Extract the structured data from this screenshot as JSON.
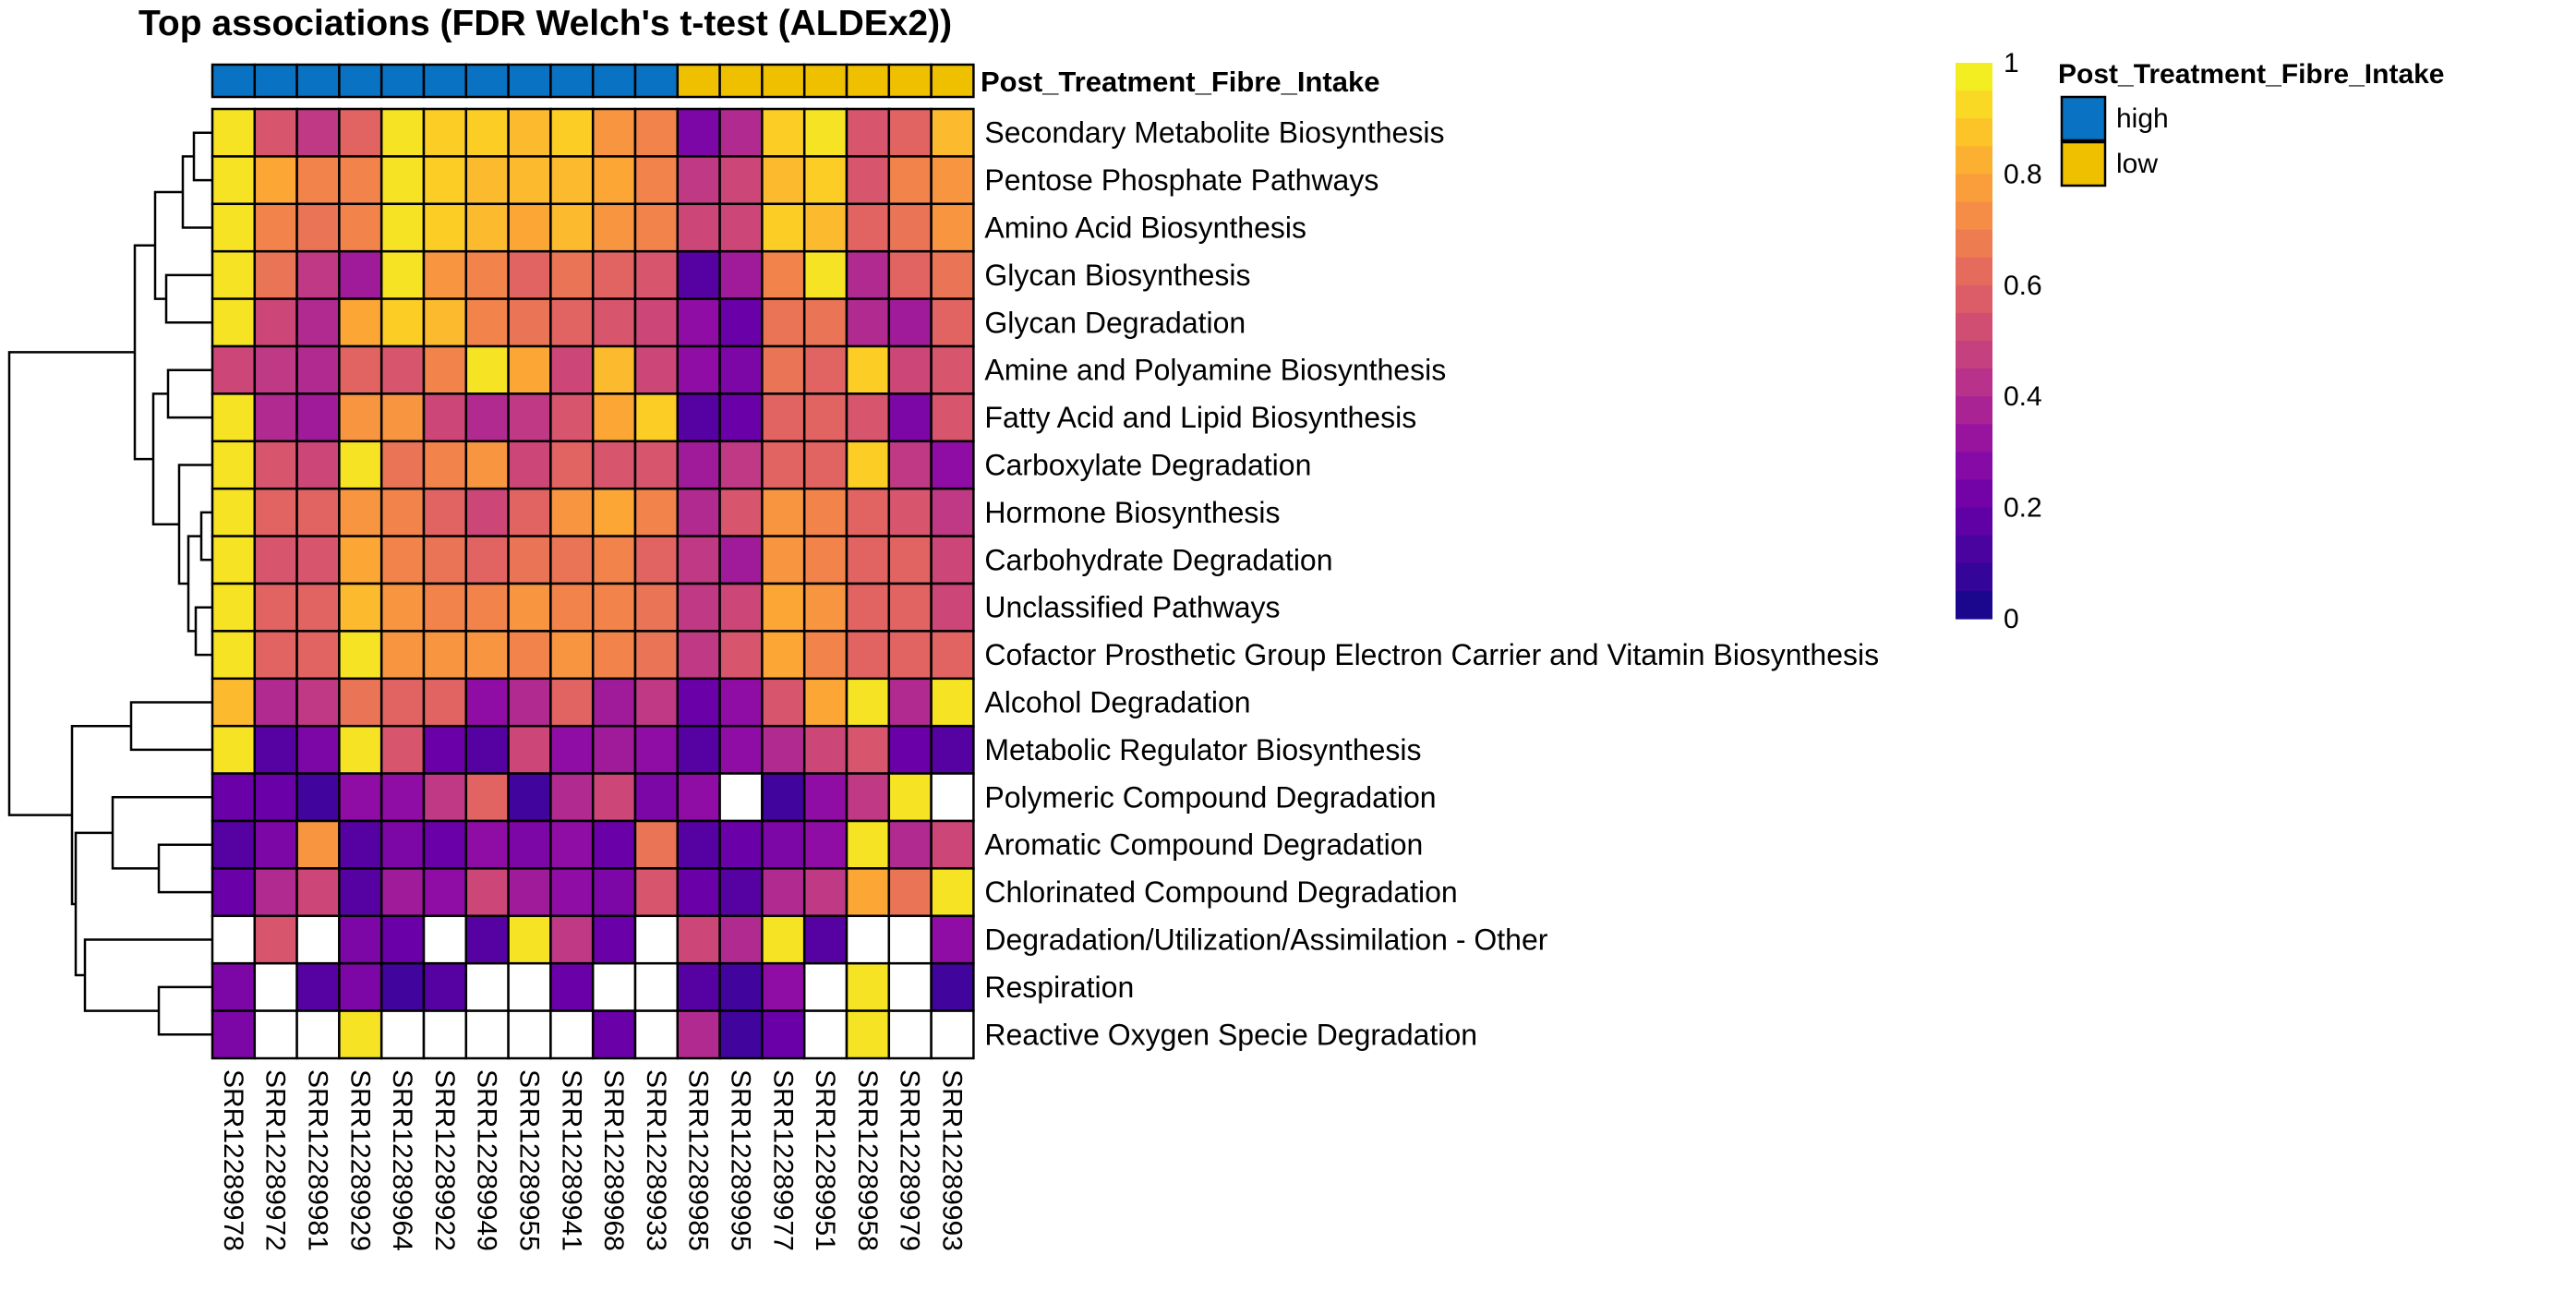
{
  "chart_data": {
    "type": "heatmap",
    "title": "Top associations (FDR Welch's t-test (ALDEx2))",
    "columns": [
      "SRR12289978",
      "SRR12289972",
      "SRR12289981",
      "SRR12289929",
      "SRR12289964",
      "SRR12289922",
      "SRR12289949",
      "SRR12289955",
      "SRR12289941",
      "SRR12289968",
      "SRR12289933",
      "SRR12289985",
      "SRR12289995",
      "SRR12289977",
      "SRR12289951",
      "SRR12289958",
      "SRR12289979",
      "SRR12289993"
    ],
    "rows": [
      "Secondary Metabolite Biosynthesis",
      "Pentose Phosphate Pathways",
      "Amino Acid Biosynthesis",
      "Glycan Biosynthesis",
      "Glycan Degradation",
      "Amine and Polyamine Biosynthesis",
      "Fatty Acid and Lipid Biosynthesis",
      "Carboxylate Degradation",
      "Hormone Biosynthesis",
      "Carbohydrate Degradation",
      "Unclassified Pathways",
      "Cofactor Prosthetic Group Electron Carrier and Vitamin Biosynthesis",
      "Alcohol Degradation",
      "Metabolic Regulator Biosynthesis",
      "Polymeric Compound Degradation",
      "Aromatic Compound Degradation",
      "Chlorinated Compound Degradation",
      "Degradation/Utilization/Assimilation - Other",
      "Respiration",
      "Reactive Oxygen Specie Degradation"
    ],
    "values": [
      [
        0.95,
        0.55,
        0.45,
        0.6,
        0.95,
        0.9,
        0.9,
        0.85,
        0.9,
        0.75,
        0.7,
        0.25,
        0.4,
        0.9,
        0.95,
        0.55,
        0.6,
        0.85
      ],
      [
        0.95,
        0.8,
        0.7,
        0.7,
        0.95,
        0.9,
        0.85,
        0.85,
        0.85,
        0.8,
        0.7,
        0.45,
        0.5,
        0.85,
        0.9,
        0.55,
        0.7,
        0.75
      ],
      [
        0.95,
        0.7,
        0.65,
        0.7,
        0.95,
        0.9,
        0.85,
        0.8,
        0.85,
        0.75,
        0.7,
        0.5,
        0.5,
        0.9,
        0.85,
        0.6,
        0.65,
        0.75
      ],
      [
        0.95,
        0.65,
        0.45,
        0.35,
        0.95,
        0.75,
        0.7,
        0.6,
        0.65,
        0.6,
        0.55,
        0.15,
        0.35,
        0.7,
        0.95,
        0.4,
        0.6,
        0.65
      ],
      [
        0.95,
        0.5,
        0.4,
        0.8,
        0.9,
        0.85,
        0.7,
        0.65,
        0.6,
        0.55,
        0.5,
        0.3,
        0.2,
        0.65,
        0.65,
        0.4,
        0.35,
        0.6
      ],
      [
        0.5,
        0.45,
        0.4,
        0.6,
        0.55,
        0.7,
        0.95,
        0.8,
        0.5,
        0.85,
        0.5,
        0.3,
        0.25,
        0.65,
        0.6,
        0.9,
        0.5,
        0.55
      ],
      [
        0.95,
        0.4,
        0.35,
        0.75,
        0.75,
        0.5,
        0.4,
        0.45,
        0.55,
        0.8,
        0.9,
        0.15,
        0.2,
        0.6,
        0.6,
        0.55,
        0.25,
        0.55
      ],
      [
        0.95,
        0.55,
        0.5,
        0.95,
        0.65,
        0.7,
        0.75,
        0.5,
        0.6,
        0.55,
        0.55,
        0.35,
        0.45,
        0.6,
        0.6,
        0.9,
        0.45,
        0.3
      ],
      [
        0.95,
        0.6,
        0.6,
        0.75,
        0.7,
        0.6,
        0.5,
        0.6,
        0.75,
        0.8,
        0.7,
        0.4,
        0.55,
        0.75,
        0.7,
        0.6,
        0.55,
        0.45
      ],
      [
        0.95,
        0.55,
        0.55,
        0.8,
        0.7,
        0.65,
        0.6,
        0.65,
        0.65,
        0.7,
        0.6,
        0.45,
        0.35,
        0.75,
        0.7,
        0.6,
        0.6,
        0.5
      ],
      [
        0.95,
        0.6,
        0.6,
        0.85,
        0.75,
        0.7,
        0.7,
        0.75,
        0.7,
        0.7,
        0.65,
        0.45,
        0.5,
        0.8,
        0.75,
        0.6,
        0.6,
        0.5
      ],
      [
        0.95,
        0.6,
        0.6,
        0.95,
        0.75,
        0.75,
        0.75,
        0.7,
        0.75,
        0.7,
        0.65,
        0.45,
        0.55,
        0.8,
        0.7,
        0.6,
        0.6,
        0.6
      ],
      [
        0.85,
        0.4,
        0.45,
        0.65,
        0.6,
        0.6,
        0.3,
        0.4,
        0.6,
        0.35,
        0.45,
        0.2,
        0.3,
        0.55,
        0.8,
        0.95,
        0.4,
        0.95
      ],
      [
        0.95,
        0.15,
        0.25,
        0.95,
        0.55,
        0.2,
        0.15,
        0.5,
        0.3,
        0.35,
        0.3,
        0.15,
        0.3,
        0.4,
        0.5,
        0.55,
        0.2,
        0.15
      ],
      [
        0.2,
        0.2,
        0.1,
        0.3,
        0.3,
        0.45,
        0.6,
        0.1,
        0.4,
        0.5,
        0.25,
        0.3,
        null,
        0.1,
        0.3,
        0.45,
        0.95,
        null
      ],
      [
        0.15,
        0.25,
        0.75,
        0.15,
        0.25,
        0.2,
        0.3,
        0.25,
        0.3,
        0.2,
        0.65,
        0.15,
        0.2,
        0.25,
        0.3,
        0.95,
        0.4,
        0.5
      ],
      [
        0.2,
        0.4,
        0.5,
        0.15,
        0.35,
        0.3,
        0.5,
        0.35,
        0.3,
        0.25,
        0.55,
        0.2,
        0.15,
        0.4,
        0.45,
        0.8,
        0.65,
        0.95
      ],
      [
        null,
        0.55,
        null,
        0.25,
        0.2,
        null,
        0.15,
        0.95,
        0.45,
        0.2,
        null,
        0.5,
        0.4,
        0.95,
        0.15,
        null,
        null,
        0.3
      ],
      [
        0.25,
        null,
        0.15,
        0.25,
        0.1,
        0.15,
        null,
        null,
        0.2,
        null,
        null,
        0.15,
        0.1,
        0.3,
        null,
        0.95,
        null,
        0.1
      ],
      [
        0.25,
        null,
        null,
        0.95,
        null,
        null,
        null,
        null,
        null,
        0.2,
        null,
        0.4,
        0.1,
        0.2,
        null,
        0.95,
        null,
        null
      ]
    ],
    "missing_color": "#ffffff",
    "annotation": {
      "name": "Post_Treatment_Fibre_Intake",
      "values": [
        "high",
        "high",
        "high",
        "high",
        "high",
        "high",
        "high",
        "high",
        "high",
        "high",
        "high",
        "low",
        "low",
        "low",
        "low",
        "low",
        "low",
        "low"
      ],
      "colors": {
        "high": "#0a72c2",
        "low": "#efc000"
      }
    },
    "colorbar": {
      "range": [
        0,
        1
      ],
      "ticks": [
        "1",
        "0.8",
        "0.6",
        "0.4",
        "0.2",
        "0"
      ],
      "palette": "plasma",
      "steps": 20
    },
    "row_dendrogram": true,
    "legend_placement": "right"
  }
}
